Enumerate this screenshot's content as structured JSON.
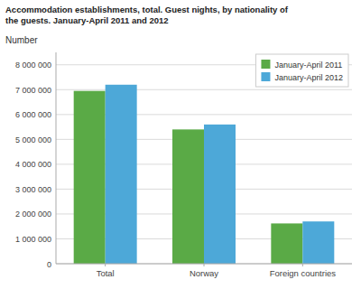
{
  "chart_data": {
    "type": "bar",
    "title": "Accommodation establishments, total. Guest nights, by nationality of\nthe guests. January-April 2011 and 2012",
    "y_label": "Number",
    "categories": [
      "Total",
      "Norway",
      "Foreign countries"
    ],
    "series": [
      {
        "name": "January-April 2011",
        "color": "#5aaa46",
        "values": [
          6950000,
          5400000,
          1620000
        ]
      },
      {
        "name": "January-April 2012",
        "color": "#4da8d8",
        "values": [
          7200000,
          5600000,
          1700000
        ]
      }
    ],
    "ylim": [
      0,
      8500000
    ],
    "yticks": [
      0,
      {
        "value": 1000000,
        "label": "1 000 000"
      },
      {
        "value": 2000000,
        "label": "2 000 000"
      },
      {
        "value": 3000000,
        "label": "3 000 000"
      },
      {
        "value": 4000000,
        "label": "4 000 000"
      },
      {
        "value": 5000000,
        "label": "5 000 000"
      },
      {
        "value": 6000000,
        "label": "6 000 000"
      },
      {
        "value": 7000000,
        "label": "7 000 000"
      },
      {
        "value": 8000000,
        "label": "8 000 000"
      }
    ],
    "grid": true,
    "legend": "upper right"
  }
}
